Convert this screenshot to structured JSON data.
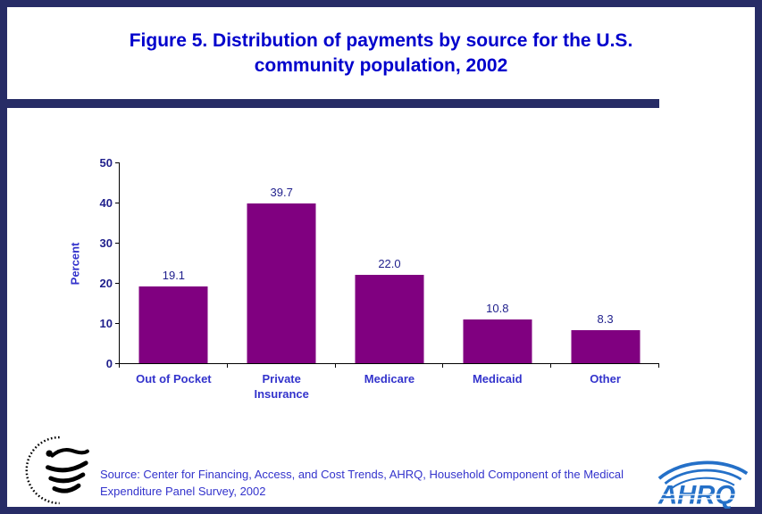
{
  "title": {
    "line1": "Figure 5. Distribution of payments by source for the U.S.",
    "line2": "community population, 2002"
  },
  "chart_data": {
    "type": "bar",
    "title": "Figure 5. Distribution of payments by source for the U.S. community population, 2002",
    "categories": [
      "Out of Pocket",
      "Private Insurance",
      "Medicare",
      "Medicaid",
      "Other"
    ],
    "values": [
      19.1,
      39.7,
      22.0,
      10.8,
      8.3
    ],
    "value_labels": [
      "19.1",
      "39.7",
      "22.0",
      "10.8",
      "8.3"
    ],
    "xlabel": "",
    "ylabel": "Percent",
    "ylim": [
      0,
      50
    ],
    "yticks": [
      0,
      10,
      20,
      30,
      40,
      50
    ],
    "bar_color": "#800080",
    "grid": false,
    "legend": false
  },
  "colors": {
    "border": "#272C66",
    "title": "#0000CC",
    "axis": "#000000",
    "tick_label": "#1F1F8C",
    "value_label": "#1F1F8C",
    "category_label": "#3333CC",
    "source_text": "#3333CC",
    "ahrq_blue": "#2470C8",
    "hhs_black": "#000000"
  },
  "footer": {
    "source_line1": "Source: Center for Financing, Access, and Cost Trends, AHRQ, Household Component of the Medical",
    "source_line2": "Expenditure Panel Survey, 2002",
    "ahrq_text": "AHRQ"
  }
}
